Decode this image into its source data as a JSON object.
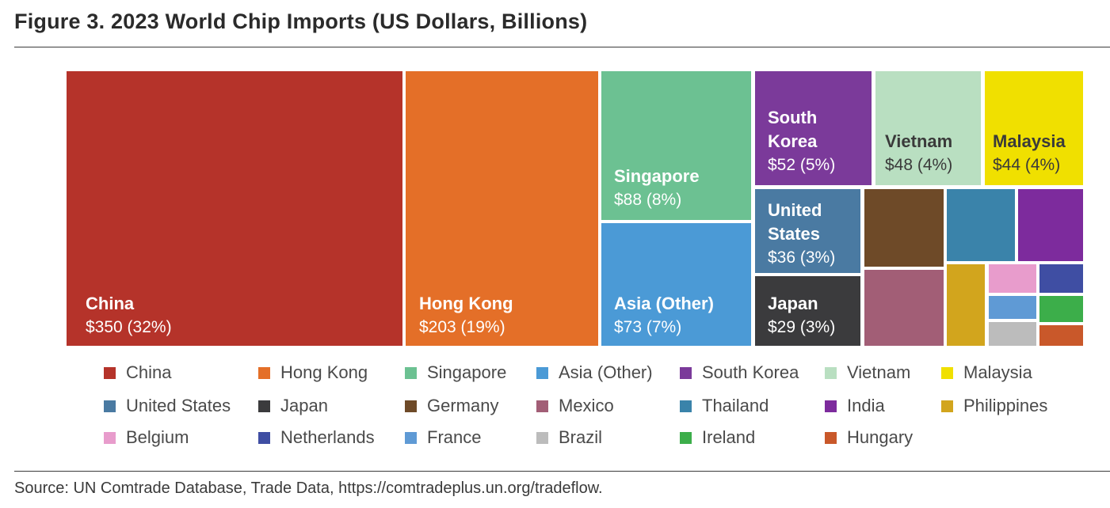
{
  "title": "Figure 3. 2023 World Chip Imports (US Dollars, Billions)",
  "source": "Source: UN Comtrade Database, Trade Data, https://comtradeplus.un.org/tradeflow.",
  "chart_data": {
    "type": "treemap",
    "title": "Figure 3. 2023 World Chip Imports (US Dollars, Billions)",
    "unit": "US Dollars, Billions",
    "legend_position": "bottom",
    "items": [
      {
        "name": "China",
        "value": 350,
        "share": "32%",
        "value_label": "$350 (32%)",
        "color": "#b5332a",
        "text_color": "#ffffff"
      },
      {
        "name": "Hong Kong",
        "value": 203,
        "share": "19%",
        "value_label": "$203 (19%)",
        "color": "#e46f28",
        "text_color": "#ffffff"
      },
      {
        "name": "Singapore",
        "value": 88,
        "share": "8%",
        "value_label": "$88 (8%)",
        "color": "#6cc192",
        "text_color": "#ffffff"
      },
      {
        "name": "Asia (Other)",
        "value": 73,
        "share": "7%",
        "value_label": "$73 (7%)",
        "color": "#4b9ad6",
        "text_color": "#ffffff"
      },
      {
        "name": "South Korea",
        "display_name": "South\nKorea",
        "value": 52,
        "share": "5%",
        "value_label": "$52 (5%)",
        "color": "#7b3a9a",
        "text_color": "#ffffff"
      },
      {
        "name": "Vietnam",
        "value": 48,
        "share": "4%",
        "value_label": "$48 (4%)",
        "color": "#b9dfc1",
        "text_color": "#3a3a3a"
      },
      {
        "name": "Malaysia",
        "value": 44,
        "share": "4%",
        "value_label": "$44 (4%)",
        "color": "#f0e000",
        "text_color": "#3a3a3a"
      },
      {
        "name": "United States",
        "display_name": "United\nStates",
        "value": 36,
        "share": "3%",
        "value_label": "$36 (3%)",
        "color": "#4a7aa2",
        "text_color": "#ffffff"
      },
      {
        "name": "Japan",
        "value": 29,
        "share": "3%",
        "value_label": "$29 (3%)",
        "color": "#3b3b3d",
        "text_color": "#ffffff"
      },
      {
        "name": "Germany",
        "color": "#6e4a28"
      },
      {
        "name": "Mexico",
        "color": "#a25e76"
      },
      {
        "name": "Thailand",
        "color": "#3a83aa"
      },
      {
        "name": "India",
        "color": "#7d2b9d"
      },
      {
        "name": "Philippines",
        "color": "#d2a51d"
      },
      {
        "name": "Belgium",
        "color": "#e89ccc"
      },
      {
        "name": "Netherlands",
        "color": "#3f4ea3"
      },
      {
        "name": "France",
        "color": "#5f9ad5"
      },
      {
        "name": "Brazil",
        "color": "#bcbcbc"
      },
      {
        "name": "Ireland",
        "color": "#3cae4a"
      },
      {
        "name": "Hungary",
        "color": "#c9582a"
      }
    ]
  }
}
